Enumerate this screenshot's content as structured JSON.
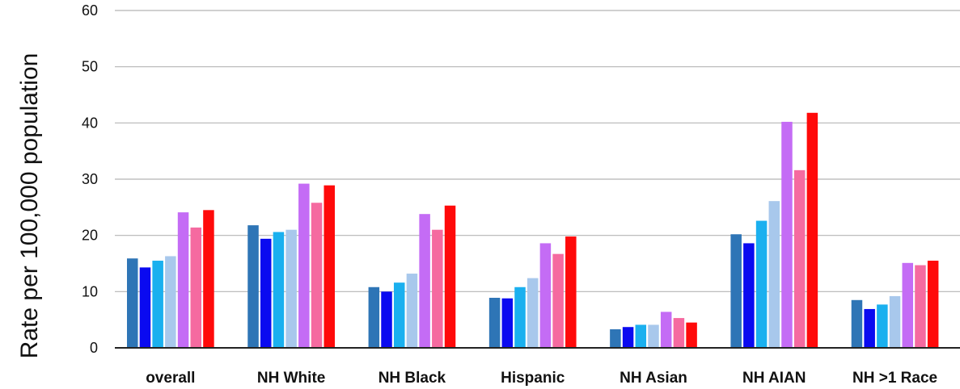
{
  "chart_data": {
    "type": "bar",
    "title": "",
    "xlabel": "",
    "ylabel": "Rate per 100,000 population",
    "ylim": [
      0,
      60
    ],
    "yticks": [
      0,
      10,
      20,
      30,
      40,
      50,
      60
    ],
    "grid": true,
    "legend": "none",
    "categories": [
      "overall",
      "NH White",
      "NH Black",
      "Hispanic",
      "NH Asian",
      "NH AIAN",
      "NH >1 Race"
    ],
    "series": [
      {
        "color": "#2e75b6",
        "values": [
          15.9,
          21.8,
          10.8,
          8.9,
          3.3,
          20.2,
          8.5
        ]
      },
      {
        "color": "#0a0af0",
        "values": [
          14.3,
          19.4,
          10.0,
          8.8,
          3.7,
          18.6,
          6.9
        ]
      },
      {
        "color": "#1ab0ef",
        "values": [
          15.5,
          20.6,
          11.6,
          10.8,
          4.1,
          22.6,
          7.7
        ]
      },
      {
        "color": "#a8c8ec",
        "values": [
          16.3,
          21.0,
          13.2,
          12.4,
          4.1,
          26.1,
          9.2
        ]
      },
      {
        "color": "#c46cf5",
        "values": [
          24.1,
          29.2,
          23.8,
          18.6,
          6.4,
          40.2,
          15.1
        ]
      },
      {
        "color": "#f56aa0",
        "values": [
          21.4,
          25.8,
          21.0,
          16.7,
          5.3,
          31.6,
          14.7
        ]
      },
      {
        "color": "#ff0a0a",
        "values": [
          24.5,
          28.9,
          25.3,
          19.8,
          4.5,
          41.8,
          15.5
        ]
      }
    ]
  }
}
